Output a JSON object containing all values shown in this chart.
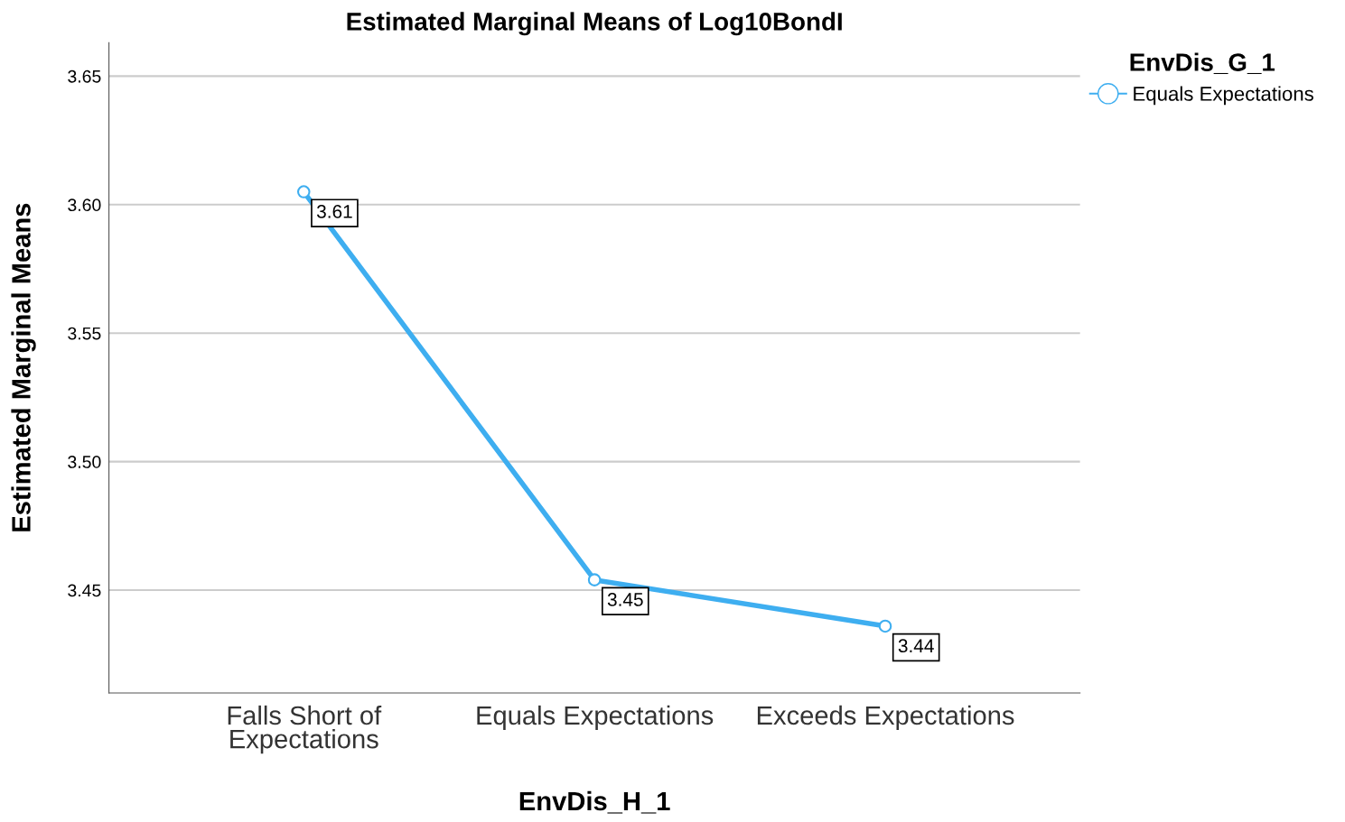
{
  "chart_data": {
    "type": "line",
    "title": "Estimated Marginal Means of Log10BondI",
    "xlabel": "EnvDis_H_1",
    "ylabel": "Estimated Marginal Means",
    "legend_title": "EnvDis_G_1",
    "categories": [
      "Falls Short of\nExpectations",
      "Equals Expectations",
      "Exceeds Expectations"
    ],
    "series": [
      {
        "name": "Equals Expectations",
        "color": "#3eaef0",
        "values": [
          3.605,
          3.454,
          3.436
        ],
        "value_labels": [
          "3.61",
          "3.45",
          "3.44"
        ]
      }
    ],
    "ylim": [
      3.41,
      3.663
    ],
    "yticks": [
      3.45,
      {
        "value": 3.5,
        "label": "3.50"
      },
      3.55,
      {
        "value": 3.6,
        "label": "3.60"
      },
      3.65
    ],
    "grid": "y",
    "legend": "top right",
    "marker": "circle",
    "line_style": "solid"
  }
}
